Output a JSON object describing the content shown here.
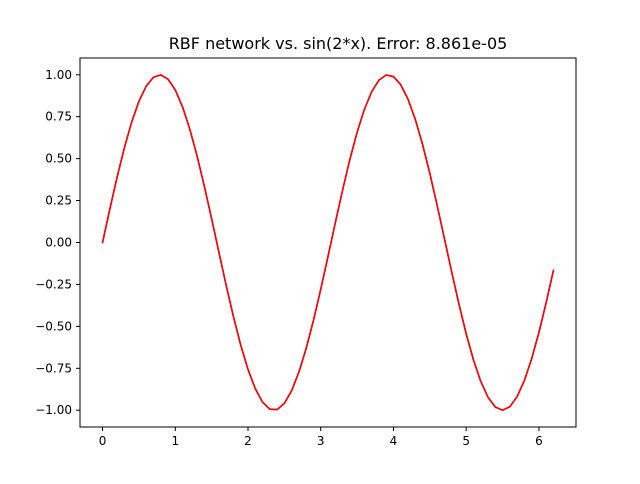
{
  "chart_data": {
    "type": "line",
    "title": "RBF network vs. sin(2*x). Error: 8.861e-05",
    "xlabel": "",
    "ylabel": "",
    "xlim": [
      -0.31,
      6.51
    ],
    "ylim": [
      -1.1,
      1.1
    ],
    "x_ticks": [
      0,
      1,
      2,
      3,
      4,
      5,
      6
    ],
    "x_tick_labels": [
      "0",
      "1",
      "2",
      "3",
      "4",
      "5",
      "6"
    ],
    "y_ticks": [
      1.0,
      0.75,
      0.5,
      0.25,
      0.0,
      -0.25,
      -0.5,
      -0.75,
      -1.0
    ],
    "y_tick_labels": [
      "1.00",
      "0.75",
      "0.50",
      "0.25",
      "0.00",
      "−0.25",
      "−0.50",
      "−0.75",
      "−1.00"
    ],
    "grid": false,
    "series": [
      {
        "name": "sin(2*x)",
        "color": "#1f77b4",
        "function": "sin(2*x)",
        "x_start": 0.0,
        "x_end": 6.2,
        "x_step": 0.1
      },
      {
        "name": "RBF network",
        "color": "#ff0000",
        "function": "sin(2*x)",
        "x_start": 0.0,
        "x_end": 6.2,
        "x_step": 0.1
      }
    ]
  }
}
